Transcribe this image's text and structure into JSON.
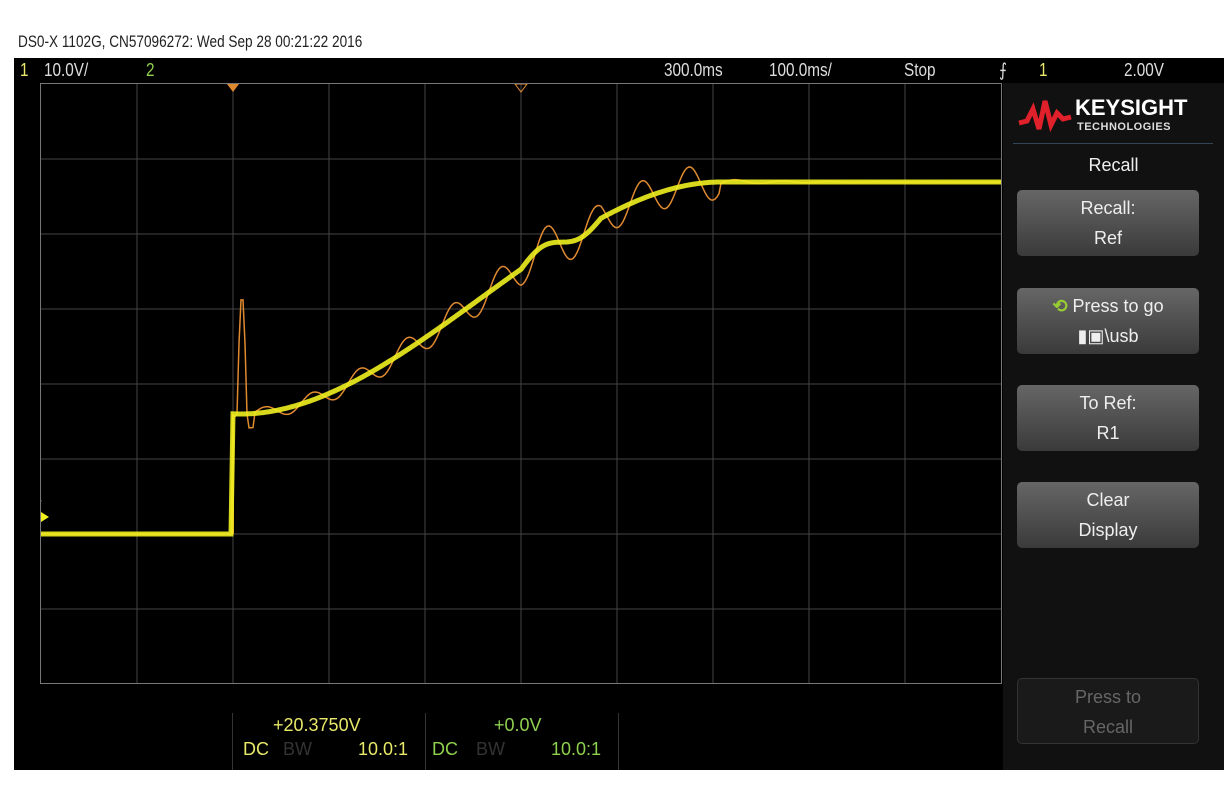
{
  "title": "DS0-X 1102G, CN57096272: Wed Sep 28 00:21:22 2016",
  "status": {
    "ch1_label": "1",
    "ch1_scale": "10.0V/",
    "ch2_label": "2",
    "delay": "300.0ms",
    "timebase": "100.0ms/",
    "run_state": "Stop",
    "trigger_icon": "rising-edge-icon",
    "trigger_source": "1",
    "trigger_level": "2.00V"
  },
  "panel": {
    "brand": "KEYSIGHT",
    "brand_sub": "TECHNOLOGIES",
    "menu_title": "Recall",
    "buttons": [
      {
        "line1": "Recall:",
        "line2": "Ref"
      },
      {
        "line1": "Press to go",
        "line2": "\\usb"
      },
      {
        "line1": "To Ref:",
        "line2": "R1"
      },
      {
        "line1": "Clear",
        "line2": "Display"
      },
      {
        "line1": "Press to",
        "line2": "Recall"
      }
    ]
  },
  "channels": [
    {
      "offset": "+20.3750V",
      "coupling": "DC",
      "bw": "BW",
      "probe": "10.0:1"
    },
    {
      "offset": "+0.0V",
      "coupling": "DC",
      "bw": "BW",
      "probe": "10.0:1"
    }
  ],
  "colors": {
    "ch1": "#f0f020",
    "ch2": "#8fd14f",
    "ref": "#e08a30",
    "brand": "#e0202a"
  }
}
